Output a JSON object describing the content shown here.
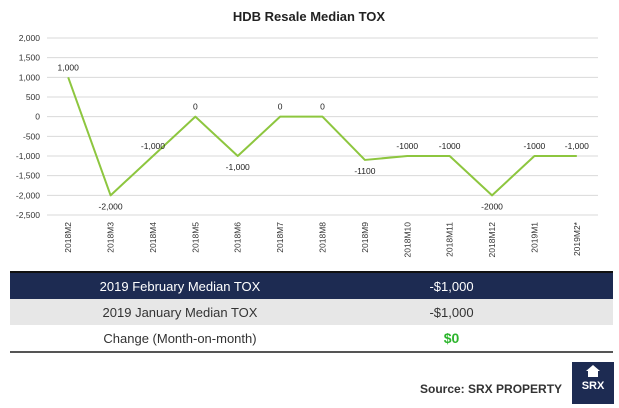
{
  "chart_data": {
    "type": "line",
    "title": "HDB Resale Median TOX",
    "categories": [
      "2018M2",
      "2018M3",
      "2018M4",
      "2018M5",
      "2018M6",
      "2018M7",
      "2018M8",
      "2018M9",
      "2018M10",
      "2018M11",
      "2018M12",
      "2019M1",
      "2019M2*"
    ],
    "series": [
      {
        "values": [
          1000,
          -2000,
          -1000,
          0,
          -1000,
          0,
          0,
          -1100,
          -1000,
          -1000,
          -2000,
          -1000,
          -1000
        ],
        "labels": [
          "1,000",
          "-2,000",
          "-1,000",
          "0",
          "-1,000",
          "0",
          "0",
          "-1100",
          "-1000",
          "-1000",
          "-2000",
          "-1000",
          "-1,000"
        ]
      }
    ],
    "yticks": [
      "2,000",
      "1,500",
      "1,000",
      "500",
      "0",
      "-500",
      "-1,000",
      "-1,500",
      "-2,000",
      "-2,500"
    ],
    "ylim": [
      -2500,
      2000
    ],
    "grid": true,
    "line_color": "#8dc63f"
  },
  "summary": {
    "rows": [
      {
        "label": "2019 February Median TOX",
        "value": "-$1,000"
      },
      {
        "label": "2019 January Median TOX",
        "value": "-$1,000"
      },
      {
        "label": "Change (Month-on-month)",
        "value": "$0"
      }
    ]
  },
  "source": "Source:  SRX PROPERTY",
  "logo": {
    "text": "SRX",
    "icon": "house-icon"
  }
}
